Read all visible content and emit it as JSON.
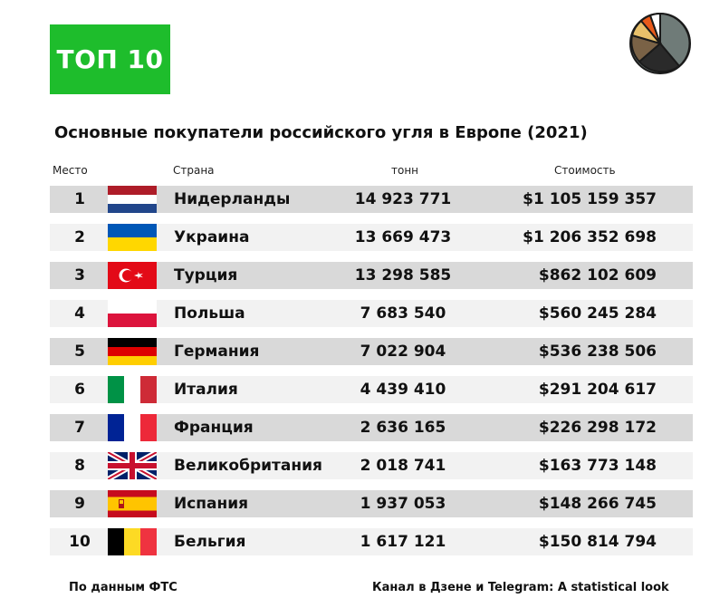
{
  "badge": {
    "label": "ТОП 10",
    "color": "#1ebd2c"
  },
  "title": "Основные покупатели российского угля в Европе (2021)",
  "headers": {
    "rank": "Место",
    "country": "Страна",
    "tons": "тонн",
    "cost": "Стоимость"
  },
  "rows": [
    {
      "rank": "1",
      "flag": "netherlands-flag",
      "country": "Нидерланды",
      "tons": "14 923 771",
      "cost": "$1 105 159 357"
    },
    {
      "rank": "2",
      "flag": "ukraine-flag",
      "country": "Украина",
      "tons": "13 669 473",
      "cost": "$1 206 352 698"
    },
    {
      "rank": "3",
      "flag": "turkey-flag",
      "country": "Турция",
      "tons": "13 298 585",
      "cost": "$862 102 609"
    },
    {
      "rank": "4",
      "flag": "poland-flag",
      "country": "Польша",
      "tons": "7 683 540",
      "cost": "$560 245 284"
    },
    {
      "rank": "5",
      "flag": "germany-flag",
      "country": "Германия",
      "tons": "7 022 904",
      "cost": "$536 238 506"
    },
    {
      "rank": "6",
      "flag": "italy-flag",
      "country": "Италия",
      "tons": "4 439 410",
      "cost": "$291 204 617"
    },
    {
      "rank": "7",
      "flag": "france-flag",
      "country": "Франция",
      "tons": "2 636 165",
      "cost": "$226 298 172"
    },
    {
      "rank": "8",
      "flag": "united-kingdom-flag",
      "country": "Великобритания",
      "tons": "2 018 741",
      "cost": "$163 773 148"
    },
    {
      "rank": "9",
      "flag": "spain-flag",
      "country": "Испания",
      "tons": "1 937 053",
      "cost": "$148 266 745"
    },
    {
      "rank": "10",
      "flag": "belgium-flag",
      "country": "Бельгия",
      "tons": "1 617 121",
      "cost": "$150 814 794"
    }
  ],
  "footer": {
    "source": "По данным ФТС",
    "channel": "Канал в Дзене и Telegram: A statistical look"
  },
  "logo_icon": "pie-chart-logo-icon"
}
